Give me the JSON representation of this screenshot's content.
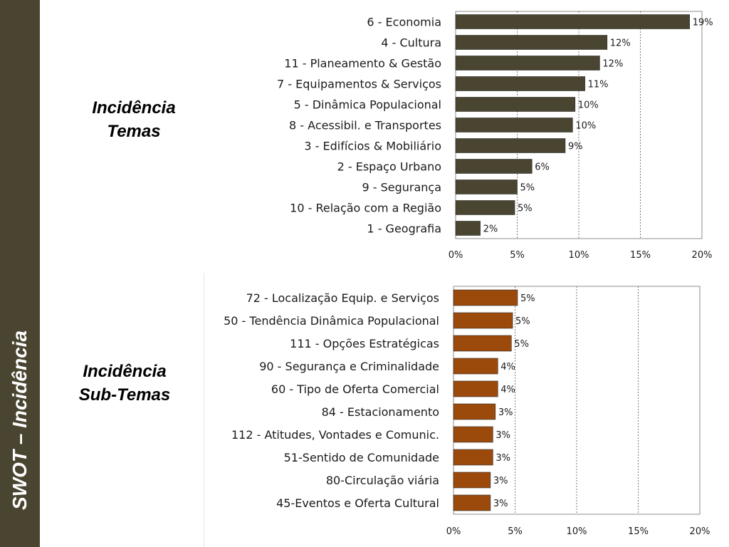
{
  "sidebar": {
    "title": "SWOT – Incidência"
  },
  "sections": {
    "temas": {
      "label_line1": "Incidência",
      "label_line2": "Temas"
    },
    "subtemas": {
      "label_line1": "Incidência",
      "label_line2": "Sub-Temas"
    }
  },
  "chart_data": [
    {
      "type": "bar",
      "orientation": "horizontal",
      "color": "#4a4530",
      "categories": [
        "6 - Economia",
        "4 - Cultura",
        "11 - Planeamento & Gestão",
        "7 - Equipamentos & Serviços",
        "5 - Dinâmica Populacional",
        "8 - Acessibil. e Transportes",
        "3 - Edifícios & Mobiliário",
        "2 - Espaço Urbano",
        "9 - Segurança",
        "10 - Relação com a Região",
        "1 - Geografia"
      ],
      "values": [
        19,
        12.3,
        11.7,
        10.5,
        9.7,
        9.5,
        8.9,
        6.2,
        5.0,
        4.8,
        2.0
      ],
      "value_labels": [
        "19%",
        "12%",
        "12%",
        "11%",
        "10%",
        "10%",
        "9%",
        "6%",
        "5%",
        "5%",
        "2%"
      ],
      "xlim": [
        0,
        20
      ],
      "xticks": [
        "0%",
        "5%",
        "10%",
        "15%",
        "20%"
      ],
      "grid": "vertical-dashed"
    },
    {
      "type": "bar",
      "orientation": "horizontal",
      "color": "#9c4a0c",
      "categories": [
        "72 - Localização Equip. e Serviços",
        "50 - Tendência Dinâmica Populacional",
        "111 - Opções Estratégicas",
        "90 - Segurança e Criminalidade",
        "60 - Tipo de Oferta Comercial",
        "84 - Estacionamento",
        "112 - Atitudes, Vontades e Comunic.",
        "51-Sentido de Comunidade",
        "80-Circulação viária",
        "45-Eventos e Oferta Cultural"
      ],
      "values": [
        5.2,
        4.8,
        4.7,
        3.6,
        3.6,
        3.4,
        3.2,
        3.2,
        3.0,
        3.0
      ],
      "value_labels": [
        "5%",
        "5%",
        "5%",
        "4%",
        "4%",
        "3%",
        "3%",
        "3%",
        "3%",
        "3%"
      ],
      "xlim": [
        0,
        20
      ],
      "xticks": [
        "0%",
        "5%",
        "10%",
        "15%",
        "20%"
      ],
      "grid": "vertical-dashed"
    }
  ]
}
